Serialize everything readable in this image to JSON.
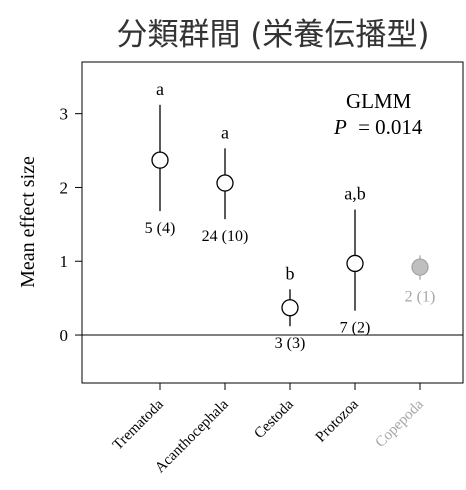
{
  "chart_data": {
    "type": "scatter",
    "title": "分類群間 (栄養伝播型)",
    "ylabel": "Mean effect size",
    "xlabel": "",
    "ylim": [
      -0.65,
      3.7
    ],
    "yticks": [
      0,
      1,
      2,
      3
    ],
    "reference_line": 0,
    "grid": false,
    "annotation": {
      "model": "GLMM",
      "p_label": "P",
      "p_value": "= 0.014"
    },
    "colors": {
      "main": "#000000",
      "muted": "#a6a6a6",
      "muted_fill": "#bfbfbf"
    },
    "categories": [
      {
        "name": "Trematoda",
        "mean": 2.37,
        "lower": 1.68,
        "upper": 3.12,
        "group": "a",
        "n": "5 (4)",
        "muted": false
      },
      {
        "name": "Acanthocephala",
        "mean": 2.06,
        "lower": 1.57,
        "upper": 2.53,
        "group": "a",
        "n": "24 (10)",
        "muted": false
      },
      {
        "name": "Cestoda",
        "mean": 0.37,
        "lower": 0.12,
        "upper": 0.62,
        "group": "b",
        "n": "3 (3)",
        "muted": false
      },
      {
        "name": "Protozoa",
        "mean": 0.97,
        "lower": 0.33,
        "upper": 1.7,
        "group": "a,b",
        "n": "7 (2)",
        "muted": false
      },
      {
        "name": "Copepoda",
        "mean": 0.92,
        "lower": 0.75,
        "upper": 1.08,
        "group": "",
        "n": "2 (1)",
        "muted": true
      }
    ]
  }
}
